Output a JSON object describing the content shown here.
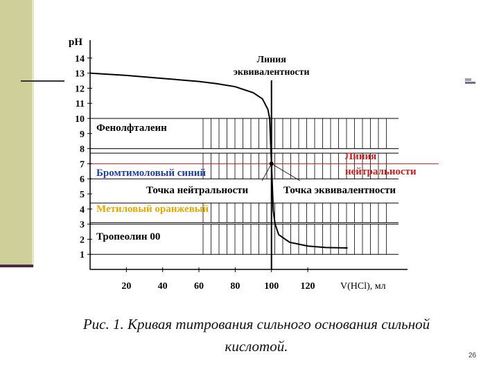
{
  "chart_data": {
    "type": "line",
    "ylabel": "pH",
    "xlabel": "V(HCl), мл",
    "xlim": [
      0,
      175
    ],
    "ylim": [
      0,
      15
    ],
    "x_ticks": [
      20,
      40,
      60,
      80,
      100,
      120
    ],
    "y_ticks": [
      1,
      2,
      3,
      4,
      5,
      6,
      7,
      8,
      9,
      10,
      11,
      12,
      13,
      14
    ],
    "series": [
      {
        "color": "#000000",
        "points": [
          [
            0,
            13.0
          ],
          [
            20,
            12.85
          ],
          [
            40,
            12.65
          ],
          [
            60,
            12.45
          ],
          [
            70,
            12.3
          ],
          [
            80,
            12.1
          ],
          [
            90,
            11.7
          ],
          [
            95,
            11.3
          ],
          [
            98,
            10.6
          ],
          [
            99,
            10.0
          ],
          [
            100,
            7.0
          ],
          [
            101,
            3.9
          ],
          [
            102,
            3.0
          ],
          [
            104,
            2.3
          ],
          [
            110,
            1.8
          ],
          [
            120,
            1.55
          ],
          [
            130,
            1.45
          ],
          [
            142,
            1.42
          ]
        ]
      }
    ],
    "indicators": [
      {
        "name": "Фенолфталеин",
        "range": [
          8,
          10
        ],
        "color": "#000000"
      },
      {
        "name": "Бромтимоловый синий",
        "range": [
          6,
          7.7
        ],
        "color": "#1f3d9c"
      },
      {
        "name": "Метиловый оранжевый",
        "range": [
          3.1,
          4.4
        ],
        "color": "#e6a800"
      },
      {
        "name": "Тропеолин 00",
        "range": [
          1,
          3
        ],
        "color": "#000000"
      }
    ],
    "equivalence_line": {
      "x": 100,
      "label_line1": "Линия",
      "label_line2": "эквивалентности"
    },
    "neutrality_line": {
      "y": 7,
      "label_line1": "Линия",
      "label_line2": "нейтральности",
      "color": "#d01c1c"
    },
    "annotations": {
      "neutral_point": "Точка нейтральности",
      "equivalence_point": "Точка эквивалентности"
    }
  },
  "caption": {
    "line1": "Рис. 1. Кривая титрования сильного основания сильной",
    "line2": "кислотой."
  },
  "page_number": "26"
}
